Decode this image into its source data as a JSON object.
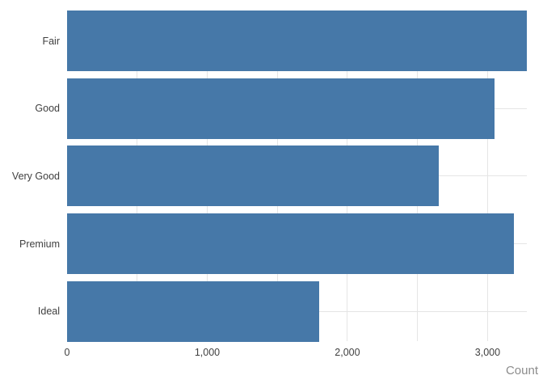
{
  "chart_data": {
    "type": "bar",
    "orientation": "horizontal",
    "title": "",
    "categories": [
      "Fair",
      "Good",
      "Very Good",
      "Premium",
      "Ideal"
    ],
    "values": [
      3280,
      3050,
      2650,
      3190,
      1800
    ],
    "xlabel": "Count",
    "ylabel": "",
    "xlim": [
      0,
      3280
    ],
    "x_tick_values": [
      0,
      1000,
      2000,
      3000
    ],
    "x_tick_labels": [
      "0",
      "1,000",
      "2,000",
      "3,000"
    ],
    "grid": true,
    "grid_step": 500,
    "legend": false,
    "colors": {
      "bar": "#4678a8",
      "gridline": "#e5e5e5",
      "tick_label": "#404040",
      "axis_title": "#8c8c8c",
      "background": "#ffffff"
    }
  }
}
